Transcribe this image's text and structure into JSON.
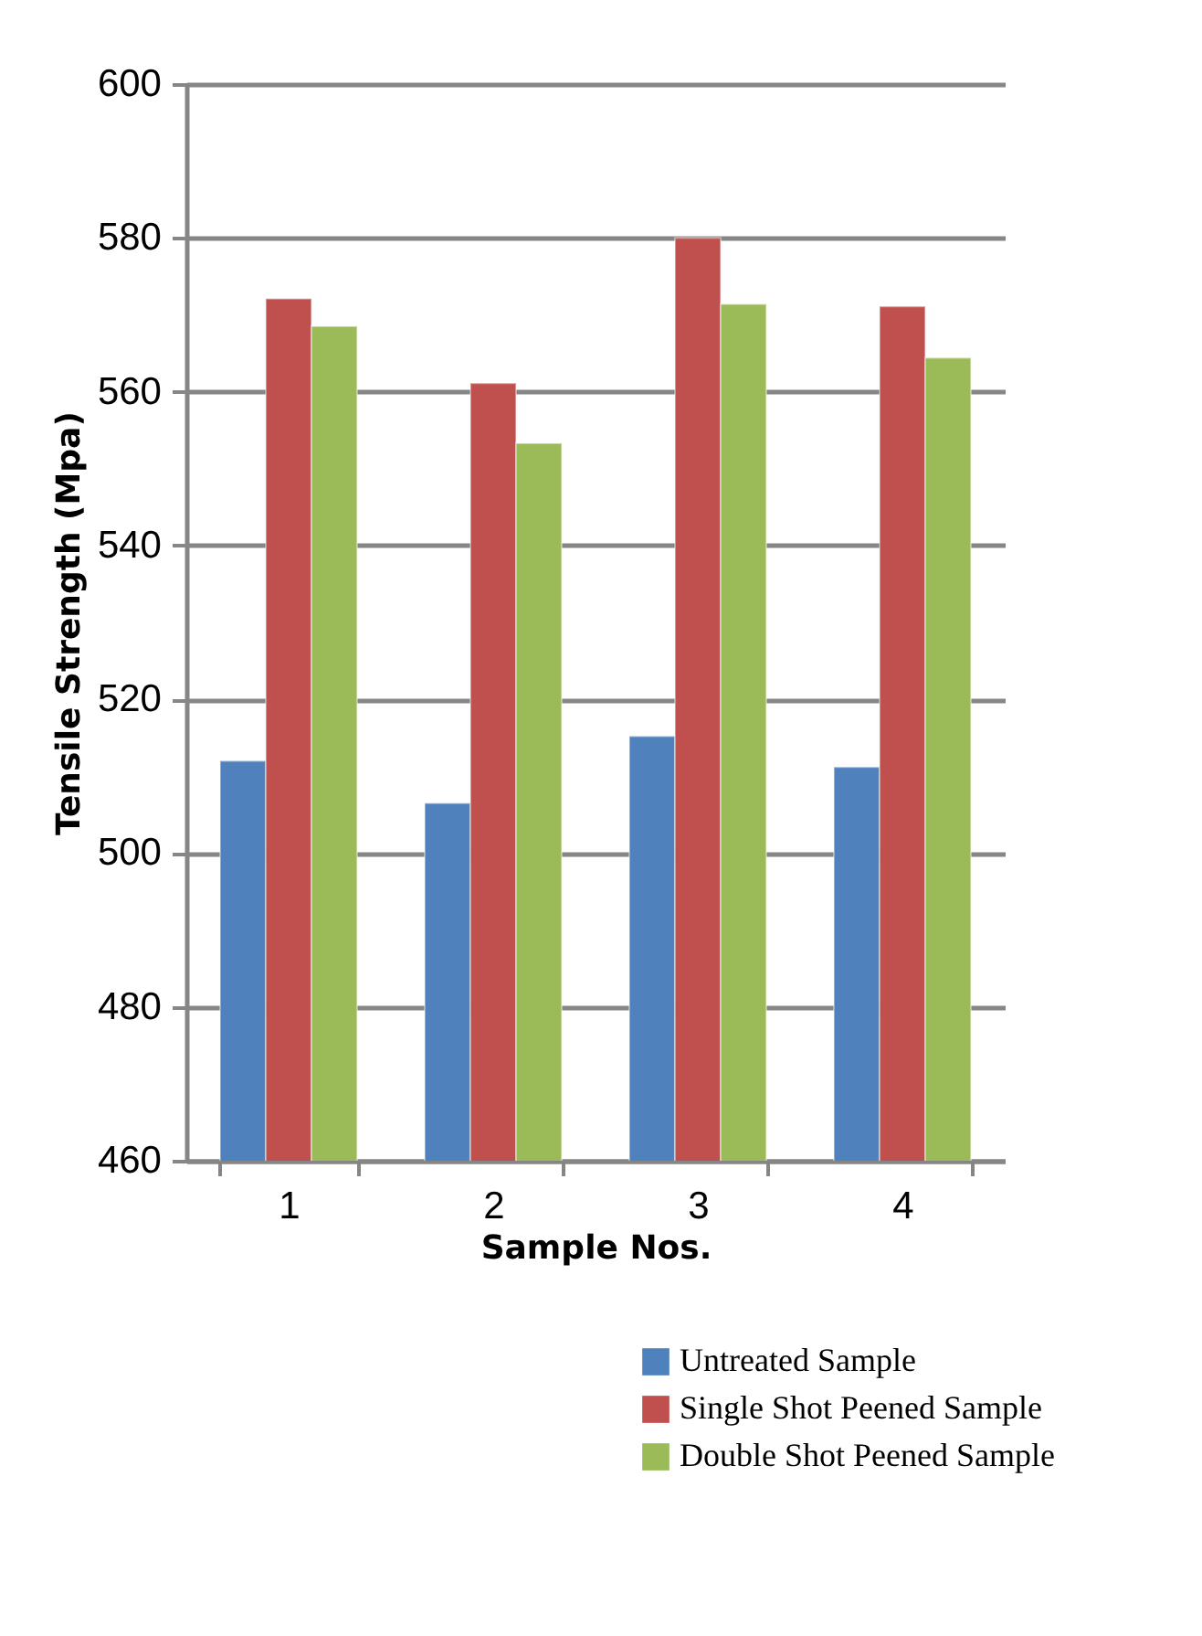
{
  "chart_data": {
    "type": "bar",
    "xlabel": "Sample Nos.",
    "ylabel": "Tensile Strength (Mpa)",
    "categories": [
      "1",
      "2",
      "3",
      "4"
    ],
    "series": [
      {
        "name": "Untreated Sample",
        "color": "#4f81bd",
        "values": [
          512.0,
          506.5,
          515.2,
          511.2
        ]
      },
      {
        "name": "Single Shot Peened Sample",
        "color": "#c0504d",
        "values": [
          572.1,
          561.1,
          580.0,
          571.1
        ]
      },
      {
        "name": "Double Shot Peened Sample",
        "color": "#9bbb59",
        "values": [
          568.5,
          553.3,
          571.4,
          564.4
        ]
      }
    ],
    "ylim": [
      460,
      600
    ],
    "yticks": [
      460,
      480,
      500,
      520,
      540,
      560,
      580,
      600
    ],
    "grid": "y",
    "legend": "bottom right"
  }
}
